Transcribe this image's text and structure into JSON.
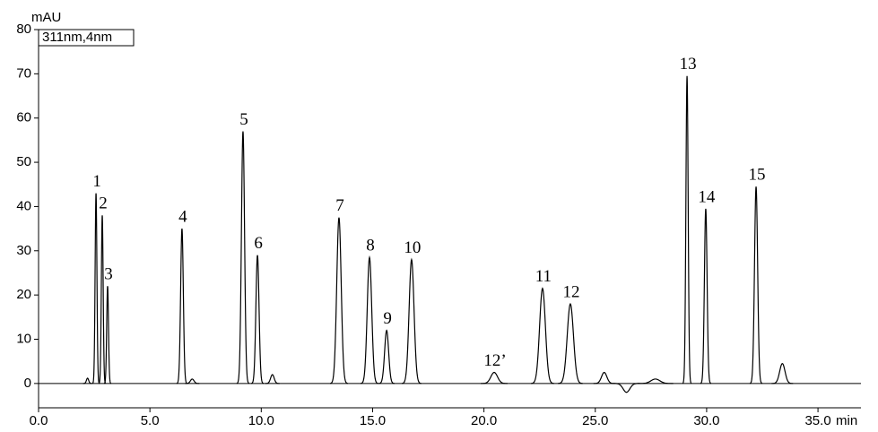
{
  "chart_data": {
    "type": "chromatogram",
    "y_unit": "mAU",
    "x_unit": "min",
    "annotation": "311nm,4nm",
    "x": [
      2.2,
      2.58,
      2.86,
      3.1,
      6.44,
      6.9,
      9.18,
      9.83,
      10.5,
      13.49,
      14.86,
      15.63,
      16.75,
      20.46,
      22.63,
      23.88,
      25.4,
      26.4,
      27.7,
      29.12,
      29.96,
      32.22,
      33.4
    ],
    "values": [
      1.2,
      43,
      38,
      22,
      35,
      1,
      57,
      29,
      2,
      37.5,
      28.5,
      12,
      28,
      2.5,
      21.5,
      18,
      2.5,
      -2,
      1,
      69.5,
      39.5,
      44.5,
      4.5
    ],
    "widths": [
      0.05,
      0.04,
      0.04,
      0.04,
      0.06,
      0.08,
      0.07,
      0.07,
      0.08,
      0.1,
      0.1,
      0.09,
      0.11,
      0.15,
      0.13,
      0.14,
      0.12,
      0.15,
      0.2,
      0.05,
      0.06,
      0.07,
      0.12
    ],
    "labels": [
      null,
      "1",
      "2",
      "3",
      "4",
      null,
      "5",
      "6",
      null,
      "7",
      "8",
      "9",
      "10",
      "12’",
      "11",
      "12",
      null,
      null,
      null,
      "13",
      "14",
      "15",
      null
    ],
    "color": "#000000",
    "xlim": [
      0,
      36.93
    ],
    "ylim": [
      -5.5,
      80
    ],
    "xticks": [
      {
        "value": 0,
        "label": "0.0"
      },
      {
        "value": 5,
        "label": "5.0"
      },
      {
        "value": 10,
        "label": "10.0"
      },
      {
        "value": 15,
        "label": "15.0"
      },
      {
        "value": 20,
        "label": "20.0"
      },
      {
        "value": 25,
        "label": "25.0"
      },
      {
        "value": 30,
        "label": "30.0"
      },
      {
        "value": 35,
        "label": "35.0"
      }
    ],
    "yticks": [
      0,
      10,
      20,
      30,
      40,
      50,
      60,
      70,
      80
    ]
  }
}
